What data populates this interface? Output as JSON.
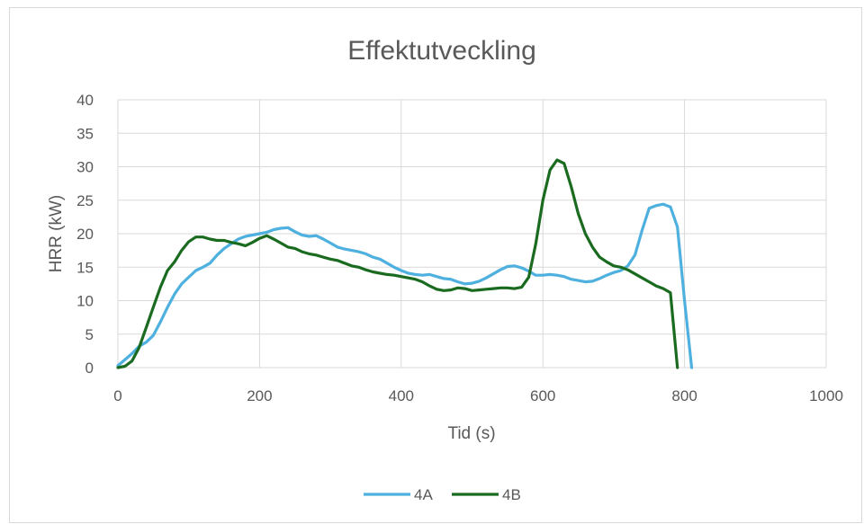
{
  "chart_data": {
    "type": "line",
    "title": "Effektutveckling",
    "xlabel": "Tid (s)",
    "ylabel": "HRR (kW)",
    "xlim": [
      0,
      1000
    ],
    "ylim": [
      0,
      40
    ],
    "xticks": [
      0,
      200,
      400,
      600,
      800,
      1000
    ],
    "yticks": [
      0,
      5,
      10,
      15,
      20,
      25,
      30,
      35,
      40
    ],
    "grid": true,
    "legend": "bottom",
    "series": [
      {
        "name": "4A",
        "color": "#4eb0df",
        "x": [
          0,
          10,
          20,
          30,
          40,
          50,
          60,
          70,
          80,
          90,
          100,
          110,
          120,
          130,
          140,
          150,
          160,
          170,
          180,
          190,
          200,
          210,
          220,
          230,
          240,
          250,
          260,
          270,
          280,
          290,
          300,
          310,
          320,
          330,
          340,
          350,
          360,
          370,
          380,
          390,
          400,
          410,
          420,
          430,
          440,
          450,
          460,
          470,
          480,
          490,
          500,
          510,
          520,
          530,
          540,
          550,
          560,
          570,
          580,
          590,
          600,
          610,
          620,
          630,
          640,
          650,
          660,
          670,
          680,
          690,
          700,
          710,
          720,
          730,
          740,
          750,
          760,
          770,
          780,
          790,
          800,
          810
        ],
        "y": [
          0.3,
          1.2,
          2.1,
          3.2,
          3.8,
          4.8,
          6.8,
          9,
          11,
          12.5,
          13.5,
          14.5,
          15,
          15.6,
          16.8,
          17.8,
          18.5,
          19.2,
          19.6,
          19.8,
          20,
          20.2,
          20.6,
          20.8,
          20.9,
          20.3,
          19.8,
          19.6,
          19.7,
          19.2,
          18.6,
          18,
          17.7,
          17.5,
          17.3,
          17,
          16.5,
          16.2,
          15.6,
          15,
          14.5,
          14.1,
          13.9,
          13.8,
          13.9,
          13.6,
          13.3,
          13.2,
          12.8,
          12.5,
          12.6,
          12.9,
          13.4,
          14,
          14.6,
          15.1,
          15.2,
          14.9,
          14.4,
          13.8,
          13.8,
          13.9,
          13.8,
          13.6,
          13.2,
          13,
          12.8,
          12.9,
          13.3,
          13.8,
          14.2,
          14.5,
          15.2,
          16.8,
          20.5,
          23.8,
          24.2,
          24.4,
          24,
          21,
          10,
          0
        ]
      },
      {
        "name": "4B",
        "color": "#1a6b20",
        "x": [
          0,
          10,
          20,
          30,
          40,
          50,
          60,
          70,
          80,
          90,
          100,
          110,
          120,
          130,
          140,
          150,
          160,
          170,
          180,
          190,
          200,
          210,
          220,
          230,
          240,
          250,
          260,
          270,
          280,
          290,
          300,
          310,
          320,
          330,
          340,
          350,
          360,
          370,
          380,
          390,
          400,
          410,
          420,
          430,
          440,
          450,
          460,
          470,
          480,
          490,
          500,
          510,
          520,
          530,
          540,
          550,
          560,
          570,
          580,
          590,
          600,
          610,
          620,
          630,
          640,
          650,
          660,
          670,
          680,
          690,
          700,
          710,
          720,
          730,
          740,
          750,
          760,
          770,
          780,
          790
        ],
        "y": [
          0,
          0.2,
          1,
          3,
          6,
          9,
          12,
          14.5,
          15.8,
          17.5,
          18.8,
          19.5,
          19.5,
          19.2,
          19,
          19,
          18.7,
          18.5,
          18.2,
          18.7,
          19.3,
          19.7,
          19.2,
          18.6,
          18,
          17.8,
          17.3,
          17,
          16.8,
          16.5,
          16.2,
          16,
          15.6,
          15.2,
          15,
          14.6,
          14.3,
          14.1,
          13.9,
          13.8,
          13.6,
          13.4,
          13.2,
          12.8,
          12.2,
          11.7,
          11.5,
          11.6,
          11.9,
          11.8,
          11.5,
          11.6,
          11.7,
          11.8,
          11.9,
          11.9,
          11.8,
          12,
          13.5,
          18.5,
          25,
          29.5,
          31,
          30.5,
          27,
          23,
          20,
          18,
          16.5,
          15.8,
          15.2,
          15,
          14.6,
          14,
          13.4,
          12.8,
          12.2,
          11.8,
          11.2,
          0
        ]
      }
    ]
  }
}
